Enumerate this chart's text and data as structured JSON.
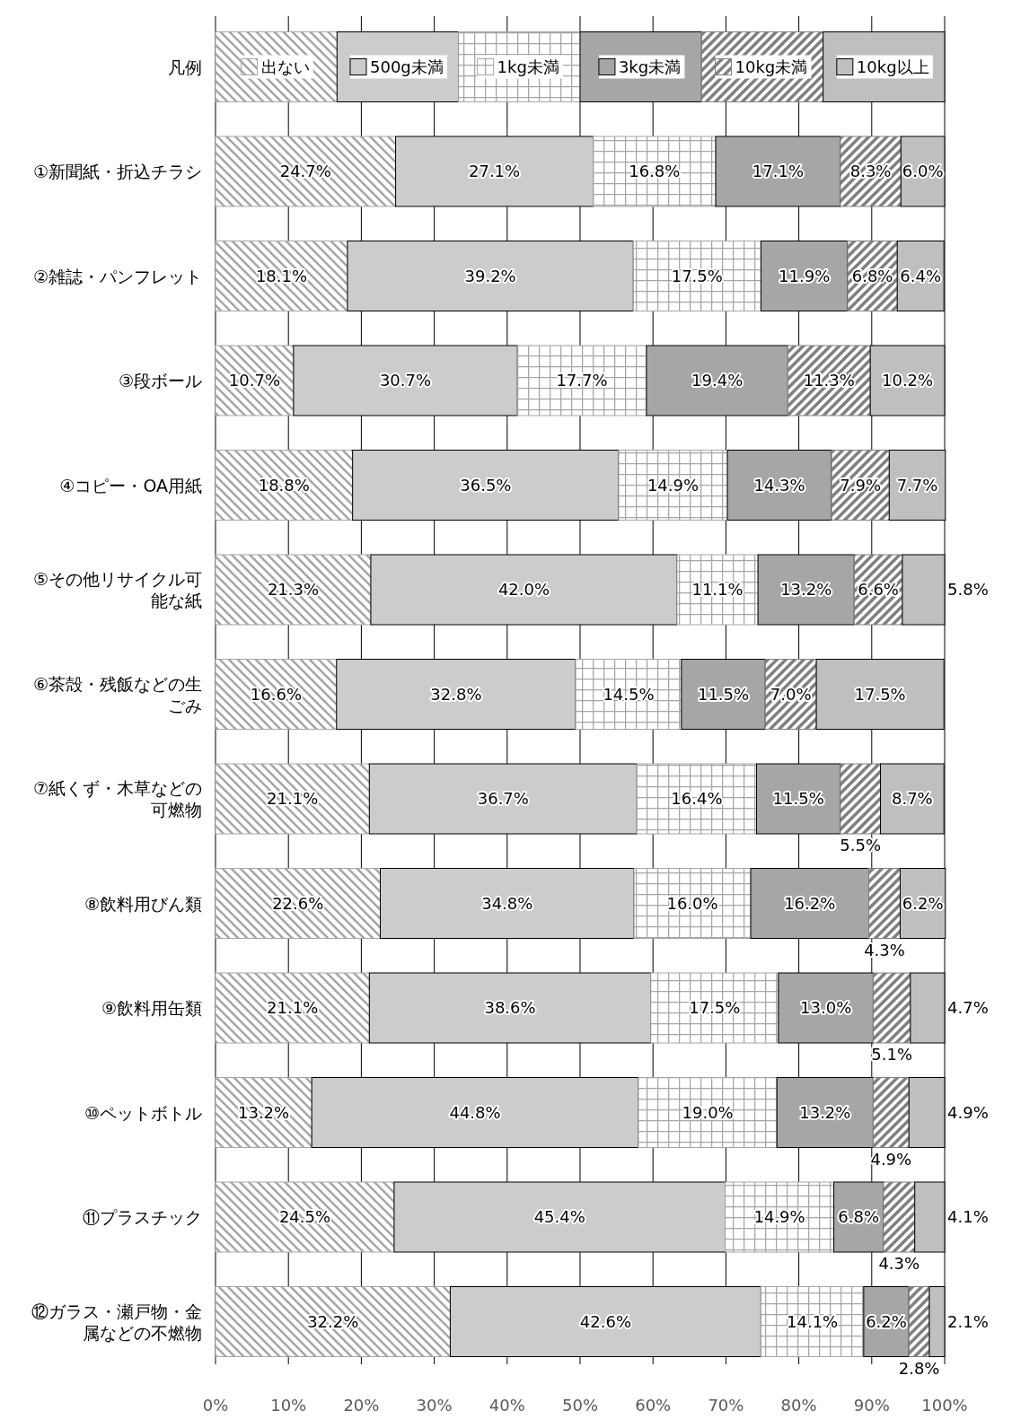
{
  "chart_data": {
    "type": "bar",
    "orientation": "horizontal",
    "stacked": true,
    "legend": "top",
    "legend_title": "凡例",
    "grid": "x",
    "categories": [
      "①新聞紙・折込チラシ",
      "②雑誌・パンフレット",
      "③段ボール",
      "④コピー・OA用紙",
      "⑤その他リサイクル可能な紙",
      "⑥茶殻・残飯などの生ごみ",
      "⑦紙くず・木草などの可燃物",
      "⑧飲料用びん類",
      "⑨飲料用缶類",
      "⑩ペットボトル",
      "⑪プラスチック",
      "⑫ガラス・瀬戸物・金属などの不燃物"
    ],
    "xlim": [
      0,
      100
    ],
    "xticks": [
      {
        "value": 0,
        "label": "0%"
      },
      {
        "value": 10,
        "label": "10%"
      },
      {
        "value": 20,
        "label": "20%"
      },
      {
        "value": 30,
        "label": "30%"
      },
      {
        "value": 40,
        "label": "40%"
      },
      {
        "value": 50,
        "label": "50%"
      },
      {
        "value": 60,
        "label": "60%"
      },
      {
        "value": 70,
        "label": "70%"
      },
      {
        "value": 80,
        "label": "80%"
      },
      {
        "value": 90,
        "label": "90%"
      },
      {
        "value": 100,
        "label": "100%"
      }
    ],
    "series": [
      {
        "name": "出ない",
        "color": "#a6a6a6",
        "values": [
          24.7,
          18.1,
          10.7,
          18.8,
          21.3,
          16.6,
          21.1,
          22.6,
          21.1,
          13.2,
          24.5,
          32.2
        ],
        "value_labels": [
          "24.7%",
          "18.1%",
          "10.7%",
          "18.8%",
          "21.3%",
          "16.6%",
          "21.1%",
          "22.6%",
          "21.1%",
          "13.2%",
          "24.5%",
          "32.2%"
        ]
      },
      {
        "name": "500g未満",
        "color": "#cccccc",
        "values": [
          27.1,
          39.2,
          30.7,
          36.5,
          42.0,
          32.8,
          36.7,
          34.8,
          38.6,
          44.8,
          45.4,
          42.6
        ],
        "value_labels": [
          "27.1%",
          "39.2%",
          "30.7%",
          "36.5%",
          "42.0%",
          "32.8%",
          "36.7%",
          "34.8%",
          "38.6%",
          "44.8%",
          "45.4%",
          "42.6%"
        ]
      },
      {
        "name": "1kg未満",
        "color": "#a6a6a6",
        "values": [
          16.8,
          17.5,
          17.7,
          14.9,
          11.1,
          14.5,
          16.4,
          16.0,
          17.5,
          19.0,
          14.9,
          14.1
        ],
        "value_labels": [
          "16.8%",
          "17.5%",
          "17.7%",
          "14.9%",
          "11.1%",
          "14.5%",
          "16.4%",
          "16.0%",
          "17.5%",
          "19.0%",
          "14.9%",
          "14.1%"
        ]
      },
      {
        "name": "3kg未満",
        "color": "#a6a6a6",
        "values": [
          17.1,
          11.9,
          19.4,
          14.3,
          13.2,
          11.5,
          11.5,
          16.2,
          13.0,
          13.2,
          6.8,
          6.2
        ],
        "value_labels": [
          "17.1%",
          "11.9%",
          "19.4%",
          "14.3%",
          "13.2%",
          "11.5%",
          "11.5%",
          "16.2%",
          "13.0%",
          "13.2%",
          "6.8%",
          "6.2%"
        ]
      },
      {
        "name": "10kg未満",
        "color": "#808080",
        "values": [
          8.3,
          6.8,
          11.3,
          7.9,
          6.6,
          7.0,
          5.5,
          4.3,
          5.1,
          4.9,
          4.3,
          2.8
        ],
        "value_labels": [
          "8.3%",
          "6.8%",
          "11.3%",
          "7.9%",
          "6.6%",
          "7.0%",
          "5.5%",
          "4.3%",
          "5.1%",
          "4.9%",
          "4.3%",
          "2.8%"
        ]
      },
      {
        "name": "10kg以上",
        "color": "#bfbfbf",
        "values": [
          6.0,
          6.4,
          10.2,
          7.7,
          5.8,
          17.5,
          8.7,
          6.2,
          4.7,
          4.9,
          4.1,
          2.1
        ],
        "value_labels": [
          "6.0%",
          "6.4%",
          "10.2%",
          "7.7%",
          "5.8%",
          "17.5%",
          "8.7%",
          "6.2%",
          "4.7%",
          "4.9%",
          "4.1%",
          "2.1%"
        ]
      }
    ]
  }
}
